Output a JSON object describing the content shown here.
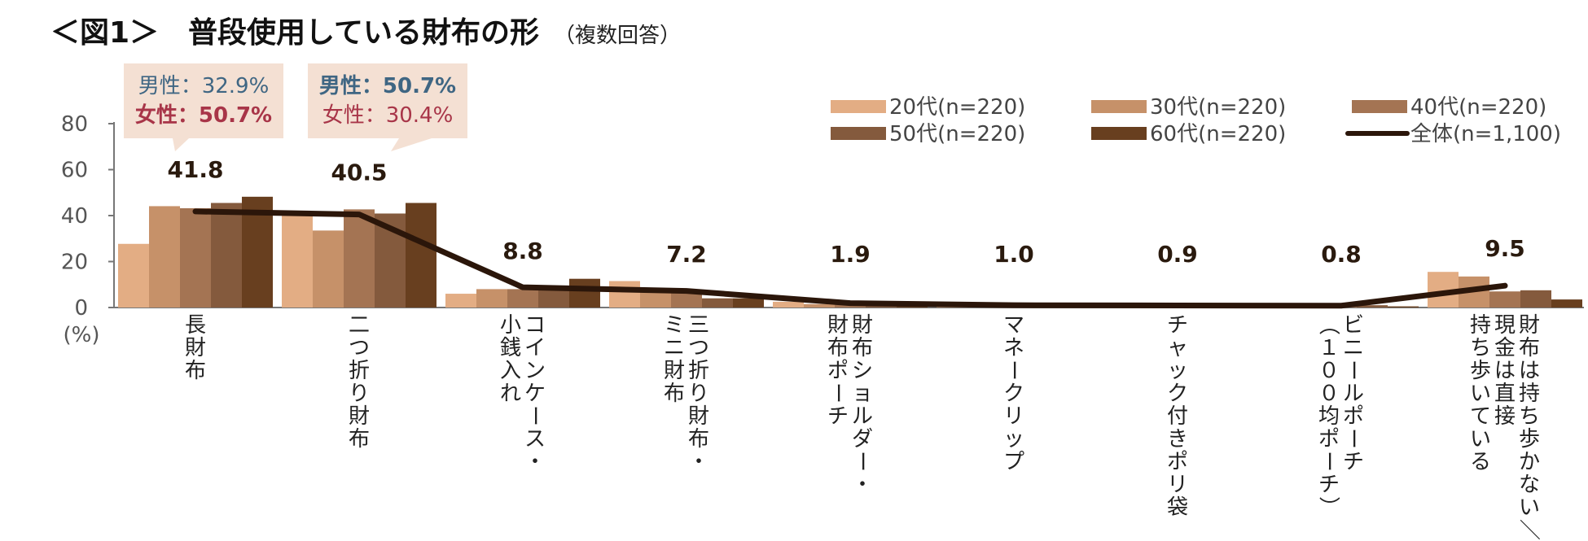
{
  "title": {
    "main": "＜図1＞　普段使用している財布の形",
    "sub": "（複数回答）"
  },
  "chart_data": {
    "type": "bar",
    "ylabel": "(%)",
    "ylim": [
      0,
      80
    ],
    "yticks": [
      0,
      20,
      40,
      60,
      80
    ],
    "grid": false,
    "legend_position": "top-right",
    "categories": [
      [
        "長",
        "財",
        "布"
      ],
      [
        "二",
        "つ",
        "折",
        "り",
        "財",
        "布"
      ],
      [
        "コ",
        "イ",
        "ン",
        "ケ",
        "ー",
        "ス",
        "・",
        "|",
        "小",
        "銭",
        "入",
        "れ"
      ],
      [
        "三",
        "つ",
        "折",
        "り",
        "財",
        "布",
        "・",
        "|",
        "ミ",
        "ニ",
        "財",
        "布"
      ],
      [
        "財",
        "布",
        "シ",
        "ョ",
        "ル",
        "ダ",
        "ー",
        "・",
        "|",
        "財",
        "布",
        "ポ",
        "ー",
        "チ"
      ],
      [
        "マ",
        "ネ",
        "ー",
        "ク",
        "リ",
        "ッ",
        "プ"
      ],
      [
        "チ",
        "ャ",
        "ッ",
        "ク",
        "付",
        "き",
        "ポ",
        "リ",
        "袋"
      ],
      [
        "ビ",
        "ニ",
        "ー",
        "ル",
        "ポ",
        "ー",
        "チ",
        "|",
        "（",
        "１",
        "０",
        "０",
        "均",
        "ポ",
        "ー",
        "チ",
        "）"
      ],
      [
        "財",
        "布",
        "は",
        "持",
        "ち",
        "歩",
        "か",
        "な",
        "い",
        "／",
        "|",
        "現",
        "金",
        "は",
        "直",
        "接",
        "|",
        "持",
        "ち",
        "歩",
        "い",
        "て",
        "い",
        "る"
      ]
    ],
    "series": [
      {
        "name": "20代(n=220)",
        "color": "#e3ad84",
        "values": [
          27.7,
          41.8,
          6.0,
          11.5,
          2.5,
          0.8,
          1.0,
          0.5,
          15.5
        ]
      },
      {
        "name": "30代(n=220)",
        "color": "#c69169",
        "values": [
          44.1,
          33.5,
          8.0,
          8.5,
          1.5,
          0.8,
          1.0,
          0.6,
          13.5
        ]
      },
      {
        "name": "40代(n=220)",
        "color": "#a47453",
        "values": [
          43.2,
          42.7,
          8.0,
          7.0,
          1.5,
          1.0,
          0.8,
          0.8,
          7.0
        ]
      },
      {
        "name": "50代(n=220)",
        "color": "#845a3d",
        "values": [
          45.5,
          40.9,
          8.5,
          4.0,
          1.8,
          1.0,
          0.7,
          1.0,
          7.5
        ]
      },
      {
        "name": "60代(n=220)",
        "color": "#683f1f",
        "values": [
          48.2,
          45.5,
          12.5,
          4.0,
          1.5,
          0.9,
          0.8,
          0.5,
          3.5
        ]
      }
    ],
    "line": {
      "name": "全体(n=1,100)",
      "color": "#2b160a",
      "values": [
        41.8,
        40.5,
        8.8,
        7.2,
        1.9,
        1.0,
        0.9,
        0.8,
        9.5
      ]
    },
    "line_labels": [
      "41.8",
      "40.5",
      "8.8",
      "7.2",
      "1.9",
      "1.0",
      "0.9",
      "0.8",
      "9.5"
    ]
  },
  "callouts": [
    {
      "line1": "男性：32.9%",
      "line2": "女性：50.7%",
      "bold": 2
    },
    {
      "line1": "男性：50.7%",
      "line2": "女性：30.4%",
      "bold": 1
    }
  ],
  "colors": {
    "callout_bg": "#f4e0d3",
    "male": "#3f6683",
    "female": "#a83548",
    "axis": "#777777"
  }
}
